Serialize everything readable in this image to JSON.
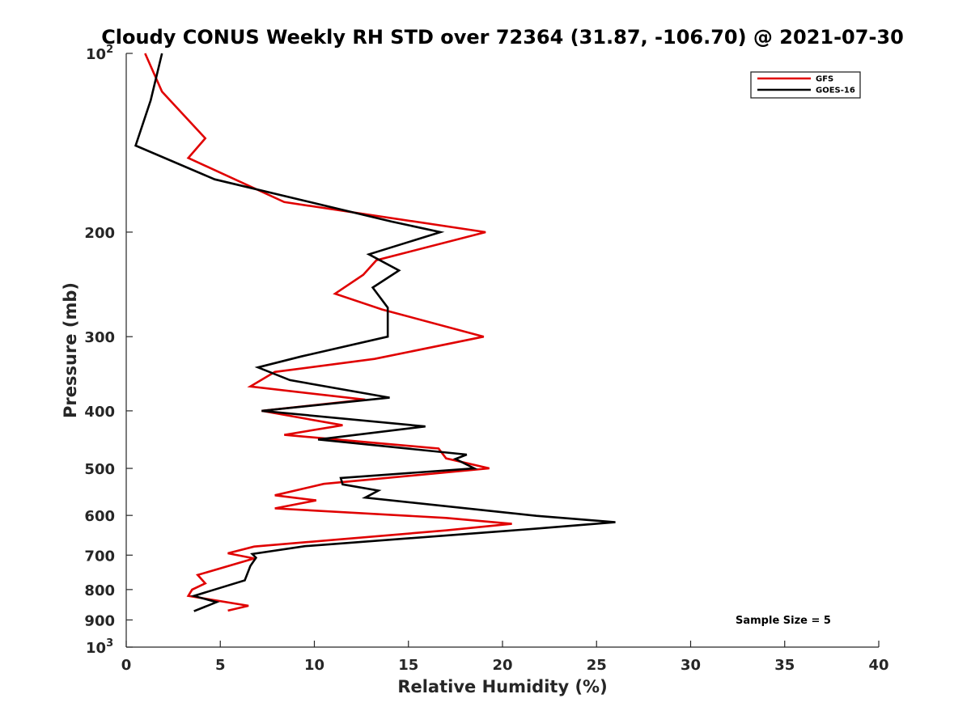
{
  "chart_data": {
    "type": "line",
    "title": "Cloudy CONUS Weekly RH STD over 72364 (31.87, -106.70) @ 2021-07-30",
    "xlabel": "Relative Humidity (%)",
    "ylabel": "Pressure (mb)",
    "xlim": [
      0,
      40
    ],
    "ylim": [
      100,
      1000
    ],
    "y_scale": "log",
    "y_reversed": true,
    "x_ticks": [
      0,
      5,
      10,
      15,
      20,
      25,
      30,
      35,
      40
    ],
    "y_ticks": [
      {
        "value": 100,
        "label": "10",
        "exp": "2"
      },
      {
        "value": 200,
        "label": "200"
      },
      {
        "value": 300,
        "label": "300"
      },
      {
        "value": 400,
        "label": "400"
      },
      {
        "value": 500,
        "label": "500"
      },
      {
        "value": 600,
        "label": "600"
      },
      {
        "value": 700,
        "label": "700"
      },
      {
        "value": 800,
        "label": "800"
      },
      {
        "value": 900,
        "label": "900"
      },
      {
        "value": 1000,
        "label": "10",
        "exp": "3"
      }
    ],
    "grid": false,
    "legend_position": "top-right",
    "annotation": "Sample Size = 5",
    "series": [
      {
        "name": "GFS",
        "color": "#e00000",
        "points": [
          [
            1.0,
            100
          ],
          [
            1.9,
            116
          ],
          [
            4.2,
            139
          ],
          [
            3.3,
            150
          ],
          [
            8.4,
            178
          ],
          [
            19.1,
            200
          ],
          [
            13.3,
            223
          ],
          [
            12.6,
            236
          ],
          [
            11.1,
            254
          ],
          [
            13.6,
            270
          ],
          [
            19.0,
            300
          ],
          [
            13.2,
            327
          ],
          [
            7.9,
            344
          ],
          [
            6.6,
            364
          ],
          [
            12.7,
            383
          ],
          [
            7.2,
            400
          ],
          [
            11.5,
            423
          ],
          [
            8.4,
            439
          ],
          [
            16.6,
            463
          ],
          [
            17.0,
            481
          ],
          [
            19.3,
            500
          ],
          [
            10.5,
            531
          ],
          [
            7.9,
            555
          ],
          [
            10.1,
            566
          ],
          [
            7.9,
            584
          ],
          [
            17.0,
            606
          ],
          [
            20.5,
            620
          ],
          [
            17.0,
            636
          ],
          [
            6.8,
            677
          ],
          [
            5.4,
            695
          ],
          [
            6.8,
            709
          ],
          [
            3.8,
            756
          ],
          [
            4.2,
            781
          ],
          [
            3.5,
            800
          ],
          [
            3.3,
            820
          ],
          [
            6.5,
            852
          ],
          [
            5.4,
            868
          ]
        ]
      },
      {
        "name": "GOES-16",
        "color": "#000000",
        "points": [
          [
            1.9,
            100
          ],
          [
            1.3,
            120
          ],
          [
            0.5,
            143
          ],
          [
            4.7,
            163
          ],
          [
            14.1,
            192
          ],
          [
            16.7,
            200
          ],
          [
            12.9,
            218
          ],
          [
            14.5,
            232
          ],
          [
            13.1,
            248
          ],
          [
            13.9,
            268
          ],
          [
            13.9,
            300
          ],
          [
            9.3,
            324
          ],
          [
            7.0,
            338
          ],
          [
            8.7,
            355
          ],
          [
            14.0,
            380
          ],
          [
            7.2,
            400
          ],
          [
            15.9,
            425
          ],
          [
            10.2,
            447
          ],
          [
            18.1,
            474
          ],
          [
            17.5,
            482
          ],
          [
            18.5,
            500
          ],
          [
            11.4,
            519
          ],
          [
            11.5,
            532
          ],
          [
            13.4,
            545
          ],
          [
            12.7,
            560
          ],
          [
            21.8,
            601
          ],
          [
            26.0,
            616
          ],
          [
            21.7,
            632
          ],
          [
            9.5,
            676
          ],
          [
            6.7,
            697
          ],
          [
            6.9,
            707
          ],
          [
            6.6,
            730
          ],
          [
            6.3,
            772
          ],
          [
            3.6,
            820
          ],
          [
            4.8,
            840
          ],
          [
            3.6,
            870
          ]
        ]
      }
    ]
  }
}
